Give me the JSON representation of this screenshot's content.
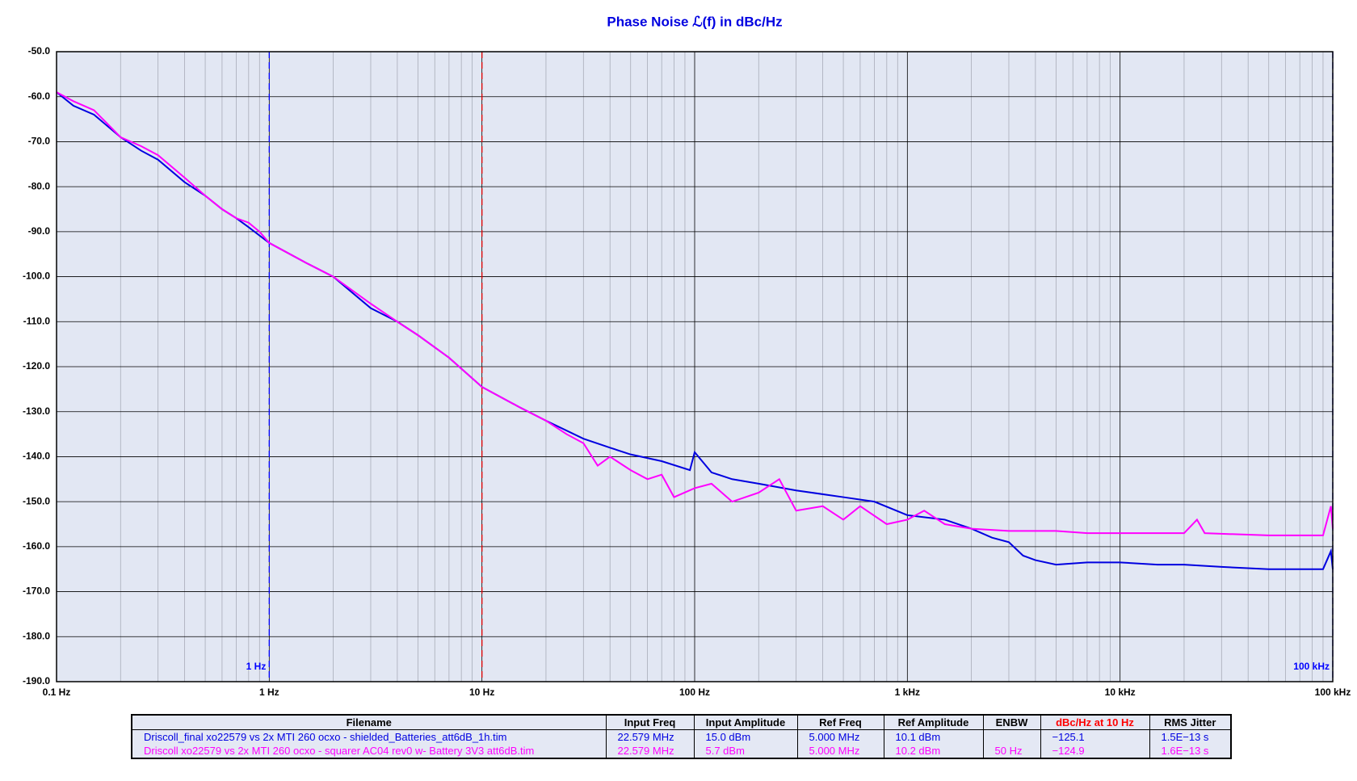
{
  "chart_data": {
    "type": "line",
    "title": "Phase Noise ℒ(f) in dBc/Hz",
    "log_x": true,
    "grid": true,
    "xlim": [
      0.1,
      100000
    ],
    "xticks": [
      {
        "value": 0.1,
        "label": "0.1 Hz"
      },
      {
        "value": 1,
        "label": "1 Hz"
      },
      {
        "value": 10,
        "label": "10 Hz"
      },
      {
        "value": 100,
        "label": "100 Hz"
      },
      {
        "value": 1000,
        "label": "1 kHz"
      },
      {
        "value": 10000,
        "label": "10 kHz"
      },
      {
        "value": 100000,
        "label": "100 kHz"
      }
    ],
    "ylim": [
      -190,
      -50
    ],
    "yticks": [
      {
        "value": -50,
        "label": "-50.0"
      },
      {
        "value": -60,
        "label": "-60.0"
      },
      {
        "value": -70,
        "label": "-70.0"
      },
      {
        "value": -80,
        "label": "-80.0"
      },
      {
        "value": -90,
        "label": "-90.0"
      },
      {
        "value": -100,
        "label": "-100.0"
      },
      {
        "value": -110,
        "label": "-110.0"
      },
      {
        "value": -120,
        "label": "-120.0"
      },
      {
        "value": -130,
        "label": "-130.0"
      },
      {
        "value": -140,
        "label": "-140.0"
      },
      {
        "value": -150,
        "label": "-150.0"
      },
      {
        "value": -160,
        "label": "-160.0"
      },
      {
        "value": -170,
        "label": "-170.0"
      },
      {
        "value": -180,
        "label": "-180.0"
      },
      {
        "value": -190,
        "label": "-190.0"
      }
    ],
    "markers": [
      {
        "x": 1,
        "color": "#0000ff",
        "label": "1 Hz"
      },
      {
        "x": 10,
        "color": "#e00000"
      },
      {
        "x": 100000,
        "color": "#0000ff",
        "label": "100 kHz"
      }
    ],
    "series": [
      {
        "name": "Driscoll_final xo22579 vs 2x MTI 260 ocxo - shielded_Batteries_att6dB_1h.tim",
        "color": "#0000e0",
        "x": [
          0.1,
          0.12,
          0.15,
          0.2,
          0.25,
          0.3,
          0.4,
          0.5,
          0.6,
          0.7,
          0.8,
          1,
          1.5,
          2,
          3,
          4,
          5,
          7,
          10,
          15,
          20,
          30,
          40,
          50,
          70,
          95,
          100,
          120,
          150,
          200,
          300,
          500,
          700,
          1000,
          1500,
          2000,
          2500,
          3000,
          3500,
          4000,
          5000,
          7000,
          10000,
          15000,
          20000,
          30000,
          50000,
          70000,
          90000,
          98000,
          100000
        ],
        "values": [
          -59,
          -62,
          -64,
          -69,
          -72,
          -74,
          -79,
          -82,
          -85,
          -87,
          -89,
          -92.5,
          -97,
          -100,
          -107,
          -110,
          -113,
          -118,
          -124.5,
          -129,
          -132,
          -136,
          -138,
          -139.5,
          -141,
          -143,
          -139,
          -143.5,
          -145,
          -146,
          -147.5,
          -149,
          -150,
          -153,
          -154,
          -156,
          -158,
          -159,
          -162,
          -163,
          -164,
          -163.5,
          -163.5,
          -164,
          -164,
          -164.5,
          -165,
          -165,
          -165,
          -161,
          -165
        ]
      },
      {
        "name": "Driscoll xo22579 vs 2x MTI 260 ocxo - squarer AC04 rev0 w- Battery 3V3 att6dB.tim",
        "color": "#ff00ff",
        "x": [
          0.1,
          0.12,
          0.15,
          0.2,
          0.25,
          0.3,
          0.4,
          0.5,
          0.6,
          0.7,
          0.8,
          0.9,
          1,
          1.5,
          2,
          3,
          4,
          5,
          7,
          10,
          15,
          20,
          25,
          30,
          35,
          40,
          50,
          60,
          70,
          80,
          100,
          120,
          150,
          200,
          250,
          300,
          400,
          500,
          600,
          800,
          1000,
          1200,
          1500,
          2000,
          3000,
          5000,
          7000,
          10000,
          20000,
          23000,
          25000,
          50000,
          90000,
          98000,
          100000
        ],
        "values": [
          -59,
          -61,
          -63,
          -69,
          -71,
          -73,
          -78,
          -82,
          -85,
          -87,
          -88,
          -90,
          -92.5,
          -97,
          -100,
          -106,
          -110,
          -113,
          -118,
          -124.5,
          -129,
          -132,
          -135,
          -137,
          -142,
          -140,
          -143,
          -145,
          -144,
          -149,
          -147,
          -146,
          -150,
          -148,
          -145,
          -152,
          -151,
          -154,
          -151,
          -155,
          -154,
          -152,
          -155,
          -156,
          -156.5,
          -156.5,
          -157,
          -157,
          -157,
          -154,
          -157,
          -157.5,
          -157.5,
          -151,
          -156
        ]
      }
    ]
  },
  "table": {
    "headers": [
      "Filename",
      "Input Freq",
      "Input Amplitude",
      "Ref Freq",
      "Ref Amplitude",
      "ENBW",
      "dBc/Hz at 10 Hz",
      "RMS Jitter"
    ],
    "header_colors": [
      null,
      null,
      null,
      null,
      null,
      null,
      "#ff0000",
      null
    ],
    "row_colors": [
      "#0000e0",
      "#ff00ff"
    ],
    "rows": [
      [
        "Driscoll_final xo22579 vs 2x MTI 260 ocxo - shielded_Batteries_att6dB_1h.tim",
        "22.579 MHz",
        "15.0 dBm",
        "5.000 MHz",
        "10.1 dBm",
        null,
        "−125.1",
        "1.5E−13 s"
      ],
      [
        "Driscoll xo22579 vs 2x MTI 260 ocxo - squarer AC04 rev0 w- Battery 3V3 att6dB.tim",
        "22.579 MHz",
        "5.7 dBm",
        "5.000 MHz",
        "10.2 dBm",
        "50 Hz",
        "−124.9",
        "1.6E−13 s"
      ]
    ]
  }
}
